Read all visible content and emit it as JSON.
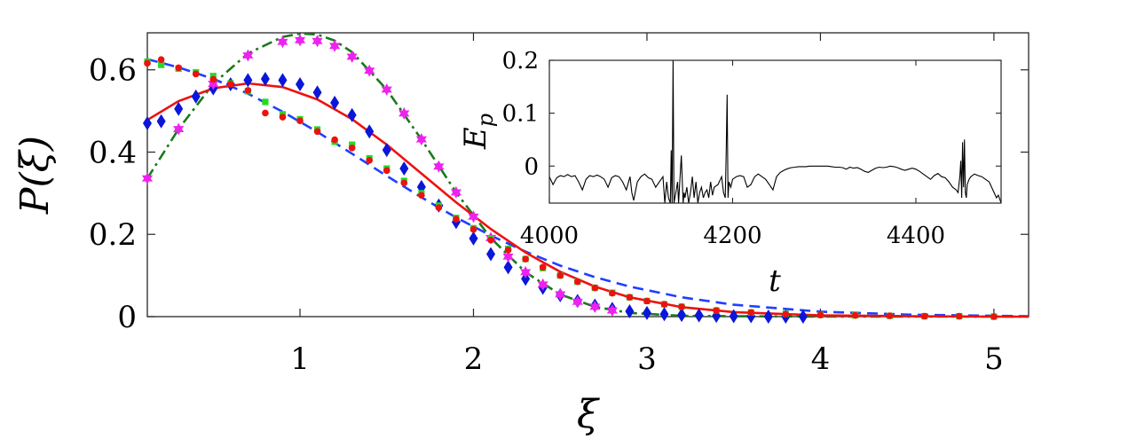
{
  "chart_data": [
    {
      "type": "line",
      "xlabel": "ξ",
      "ylabel": "P(ξ)",
      "xlim": [
        0.12,
        5.2
      ],
      "ylim": [
        0,
        0.69
      ],
      "xticks": [
        1,
        2,
        3,
        4,
        5
      ],
      "yticks": [
        0,
        0.2,
        0.4,
        0.6
      ],
      "xtick_labels": [
        "1",
        "2",
        "3",
        "4",
        "5"
      ],
      "ytick_labels": [
        "0",
        "0.2",
        "0.4",
        "0.6"
      ],
      "grid": false,
      "series": [
        {
          "style": "dashed-line",
          "color": "#1f3fff",
          "x": [
            0.12,
            0.3,
            0.5,
            0.7,
            0.9,
            1.1,
            1.3,
            1.5,
            1.7,
            1.9,
            2.1,
            2.3,
            2.5,
            2.7,
            2.9,
            3.2,
            3.5,
            4.0,
            4.5,
            5.0,
            5.2
          ],
          "y": [
            0.626,
            0.606,
            0.578,
            0.542,
            0.498,
            0.449,
            0.396,
            0.342,
            0.29,
            0.241,
            0.197,
            0.158,
            0.124,
            0.096,
            0.073,
            0.047,
            0.029,
            0.012,
            0.005,
            0.002,
            0.001
          ]
        },
        {
          "style": "dashdot-line",
          "color": "#1a7a1a",
          "x": [
            0.12,
            0.3,
            0.5,
            0.7,
            0.9,
            1.0,
            1.1,
            1.2,
            1.3,
            1.5,
            1.7,
            1.9,
            2.1,
            2.3,
            2.5,
            2.7,
            2.9,
            3.2,
            3.5,
            4.0,
            5.0,
            5.2
          ],
          "y": [
            0.336,
            0.456,
            0.566,
            0.64,
            0.68,
            0.688,
            0.686,
            0.671,
            0.643,
            0.552,
            0.431,
            0.302,
            0.191,
            0.108,
            0.054,
            0.024,
            0.009,
            0.002,
            0.001,
            0.0,
            0.0,
            0.0
          ]
        },
        {
          "style": "solid-line",
          "color": "#ee1111",
          "x": [
            0.12,
            0.3,
            0.5,
            0.7,
            0.9,
            1.1,
            1.3,
            1.5,
            1.7,
            1.9,
            2.1,
            2.3,
            2.5,
            2.7,
            2.9,
            3.2,
            3.5,
            4.0,
            4.5,
            5.0,
            5.2
          ],
          "y": [
            0.478,
            0.524,
            0.555,
            0.567,
            0.558,
            0.528,
            0.48,
            0.418,
            0.348,
            0.278,
            0.213,
            0.156,
            0.109,
            0.073,
            0.047,
            0.023,
            0.011,
            0.003,
            0.001,
            0.0,
            0.0
          ]
        },
        {
          "style": "diamond-marker",
          "color": "#0a16d8",
          "x": [
            0.12,
            0.2,
            0.3,
            0.4,
            0.5,
            0.6,
            0.7,
            0.8,
            0.9,
            1.0,
            1.1,
            1.2,
            1.3,
            1.4,
            1.5,
            1.6,
            1.7,
            1.8,
            1.9,
            2.0,
            2.1,
            2.2,
            2.3,
            2.4,
            2.5,
            2.6,
            2.7,
            2.8,
            2.9,
            3.0,
            3.1,
            3.2,
            3.3,
            3.4,
            3.5,
            3.6,
            3.7,
            3.8,
            3.9
          ],
          "y": [
            0.47,
            0.475,
            0.505,
            0.535,
            0.555,
            0.565,
            0.575,
            0.578,
            0.575,
            0.565,
            0.545,
            0.52,
            0.49,
            0.45,
            0.405,
            0.36,
            0.315,
            0.27,
            0.23,
            0.19,
            0.152,
            0.12,
            0.092,
            0.07,
            0.052,
            0.038,
            0.027,
            0.019,
            0.013,
            0.009,
            0.006,
            0.004,
            0.003,
            0.002,
            0.001,
            0.001,
            0.0,
            0.0,
            0.0
          ]
        },
        {
          "style": "hexagram-marker",
          "color": "#ee22ee",
          "x": [
            0.12,
            0.3,
            0.5,
            0.7,
            0.9,
            1.0,
            1.1,
            1.2,
            1.3,
            1.4,
            1.5,
            1.6,
            1.7,
            1.8,
            1.9,
            2.0,
            2.1,
            2.2,
            2.3,
            2.4,
            2.5,
            2.6,
            2.7,
            2.8
          ],
          "y": [
            0.336,
            0.456,
            0.566,
            0.635,
            0.668,
            0.672,
            0.67,
            0.658,
            0.632,
            0.598,
            0.552,
            0.494,
            0.431,
            0.365,
            0.302,
            0.243,
            0.191,
            0.146,
            0.108,
            0.078,
            0.054,
            0.036,
            0.024,
            0.015
          ]
        },
        {
          "style": "square-marker",
          "color": "#22dd22",
          "x": [
            0.12,
            0.2,
            0.3,
            0.4,
            0.5,
            0.6,
            0.7,
            0.8,
            0.9,
            1.0,
            1.1,
            1.2,
            1.3,
            1.4,
            1.5,
            1.6,
            1.7,
            1.8,
            1.9,
            2.0,
            2.1,
            2.2,
            2.3,
            2.4,
            2.5,
            2.6,
            2.7,
            2.8,
            2.9,
            3.0,
            3.1,
            3.2,
            3.4,
            3.6,
            3.8,
            4.0,
            4.2,
            4.4,
            4.6,
            4.8,
            5.0
          ],
          "y": [
            0.62,
            0.612,
            0.603,
            0.594,
            0.585,
            0.567,
            0.548,
            0.522,
            0.492,
            0.48,
            0.455,
            0.425,
            0.418,
            0.385,
            0.36,
            0.33,
            0.3,
            0.27,
            0.24,
            0.215,
            0.19,
            0.165,
            0.14,
            0.118,
            0.1,
            0.085,
            0.07,
            0.058,
            0.047,
            0.038,
            0.03,
            0.024,
            0.015,
            0.01,
            0.007,
            0.004,
            0.003,
            0.002,
            0.001,
            0.001,
            0.0
          ]
        },
        {
          "style": "circle-marker",
          "color": "#ee1111",
          "x": [
            0.12,
            0.2,
            0.3,
            0.4,
            0.5,
            0.6,
            0.7,
            0.8,
            0.9,
            1.0,
            1.1,
            1.2,
            1.3,
            1.4,
            1.5,
            1.6,
            1.7,
            1.8,
            1.9,
            2.0,
            2.1,
            2.2,
            2.3,
            2.4,
            2.5,
            2.6,
            2.7,
            2.8,
            2.9,
            3.0,
            3.1,
            3.2,
            3.4,
            3.6,
            3.8,
            4.0,
            4.2,
            4.4,
            4.6,
            4.8,
            5.0
          ],
          "y": [
            0.616,
            0.625,
            0.605,
            0.59,
            0.577,
            0.565,
            0.55,
            0.495,
            0.485,
            0.476,
            0.45,
            0.43,
            0.41,
            0.38,
            0.355,
            0.325,
            0.295,
            0.265,
            0.237,
            0.212,
            0.186,
            0.162,
            0.14,
            0.12,
            0.1,
            0.085,
            0.07,
            0.057,
            0.047,
            0.038,
            0.03,
            0.024,
            0.015,
            0.01,
            0.006,
            0.004,
            0.003,
            0.002,
            0.001,
            0.001,
            0.0
          ]
        }
      ]
    },
    {
      "type": "line",
      "xlabel": "t",
      "ylabel": "E_p",
      "ylabel_main": "E",
      "ylabel_sub": "p",
      "xlim": [
        4000,
        4493
      ],
      "ylim": [
        -0.07,
        0.2
      ],
      "xticks": [
        4000,
        4200,
        4400
      ],
      "yticks": [
        0,
        0.1,
        0.2
      ],
      "xtick_labels": [
        "4000",
        "4200",
        "4400"
      ],
      "ytick_labels": [
        "0",
        "0.1",
        "0.2"
      ],
      "grid": false,
      "series": [
        {
          "color": "#000000",
          "x": [
            4000,
            4004,
            4008,
            4012,
            4016,
            4020,
            4024,
            4028,
            4032,
            4036,
            4040,
            4044,
            4048,
            4052,
            4056,
            4060,
            4064,
            4068,
            4072,
            4076,
            4080,
            4084,
            4088,
            4090,
            4092,
            4096,
            4100,
            4104,
            4108,
            4112,
            4116,
            4120,
            4124,
            4126,
            4128,
            4130,
            4132,
            4133,
            4134,
            4135,
            4136,
            4138,
            4140,
            4141,
            4142,
            4144,
            4146,
            4147,
            4148,
            4150,
            4152,
            4154,
            4156,
            4158,
            4160,
            4162,
            4164,
            4166,
            4168,
            4170,
            4172,
            4174,
            4176,
            4178,
            4180,
            4184,
            4188,
            4190,
            4192,
            4193,
            4194,
            4195,
            4196,
            4198,
            4200,
            4204,
            4208,
            4212,
            4216,
            4220,
            4224,
            4228,
            4232,
            4236,
            4240,
            4244,
            4248,
            4252,
            4256,
            4260,
            4264,
            4268,
            4272,
            4276,
            4280,
            4284,
            4288,
            4292,
            4296,
            4300,
            4304,
            4308,
            4312,
            4316,
            4320,
            4324,
            4328,
            4332,
            4336,
            4340,
            4344,
            4348,
            4352,
            4356,
            4360,
            4364,
            4368,
            4372,
            4376,
            4380,
            4384,
            4388,
            4392,
            4396,
            4400,
            4404,
            4408,
            4412,
            4416,
            4420,
            4424,
            4428,
            4432,
            4436,
            4440,
            4444,
            4446,
            4448,
            4449,
            4450,
            4451,
            4452,
            4453,
            4454,
            4455,
            4456,
            4458,
            4460,
            4464,
            4468,
            4472,
            4476,
            4480,
            4484,
            4488,
            4490,
            4493
          ],
          "y": [
            -0.02,
            -0.035,
            -0.022,
            -0.018,
            -0.02,
            -0.016,
            -0.02,
            -0.018,
            -0.03,
            -0.045,
            -0.025,
            -0.018,
            -0.02,
            -0.017,
            -0.02,
            -0.025,
            -0.04,
            -0.022,
            -0.018,
            -0.02,
            -0.03,
            -0.045,
            -0.02,
            -0.05,
            -0.065,
            -0.03,
            -0.02,
            -0.015,
            -0.022,
            -0.025,
            -0.04,
            -0.03,
            -0.02,
            -0.07,
            -0.03,
            -0.06,
            -0.07,
            0.03,
            -0.07,
            0.2,
            -0.07,
            -0.05,
            -0.03,
            -0.07,
            -0.04,
            0.02,
            -0.07,
            -0.05,
            -0.06,
            -0.04,
            -0.07,
            -0.05,
            -0.02,
            -0.06,
            -0.03,
            -0.07,
            -0.05,
            -0.04,
            -0.06,
            -0.05,
            -0.045,
            -0.06,
            -0.03,
            -0.055,
            -0.04,
            -0.035,
            -0.02,
            -0.05,
            -0.06,
            0.03,
            0.135,
            -0.06,
            -0.03,
            -0.04,
            -0.025,
            -0.02,
            -0.018,
            -0.02,
            -0.04,
            -0.035,
            -0.02,
            -0.015,
            -0.02,
            -0.025,
            -0.035,
            -0.045,
            -0.02,
            -0.012,
            -0.008,
            -0.005,
            -0.003,
            -0.002,
            -0.001,
            -0.001,
            -0.001,
            0.0,
            0.0,
            0.0,
            0.0,
            0.0,
            0.0,
            -0.001,
            -0.002,
            -0.002,
            -0.003,
            -0.006,
            -0.002,
            -0.004,
            -0.003,
            -0.006,
            -0.01,
            -0.012,
            -0.008,
            -0.004,
            -0.002,
            -0.003,
            -0.002,
            0.0,
            -0.001,
            -0.003,
            -0.006,
            -0.008,
            -0.006,
            -0.004,
            -0.006,
            -0.01,
            -0.015,
            -0.02,
            -0.025,
            -0.018,
            -0.014,
            -0.02,
            -0.022,
            -0.03,
            -0.04,
            -0.045,
            -0.05,
            -0.02,
            0.01,
            -0.06,
            0.045,
            -0.04,
            0.05,
            -0.05,
            -0.06,
            -0.035,
            -0.025,
            -0.02,
            -0.015,
            -0.018,
            -0.02,
            -0.025,
            -0.03,
            -0.045,
            -0.06,
            -0.055,
            -0.07
          ]
        }
      ]
    }
  ]
}
